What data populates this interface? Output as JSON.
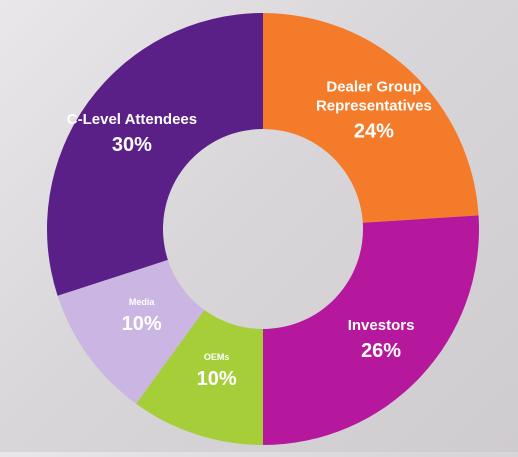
{
  "chart_data": {
    "type": "donut",
    "categories": [
      "Dealer Group Representatives",
      "Investors",
      "OEMs",
      "Media",
      "C-Level Attendees"
    ],
    "values": [
      24,
      26,
      10,
      10,
      30
    ],
    "value_labels": [
      "24%",
      "26%",
      "10%",
      "10%",
      "30%"
    ],
    "colors": [
      "#f47b2a",
      "#b5189c",
      "#a6ce39",
      "#cbb6e3",
      "#5a2088"
    ]
  }
}
